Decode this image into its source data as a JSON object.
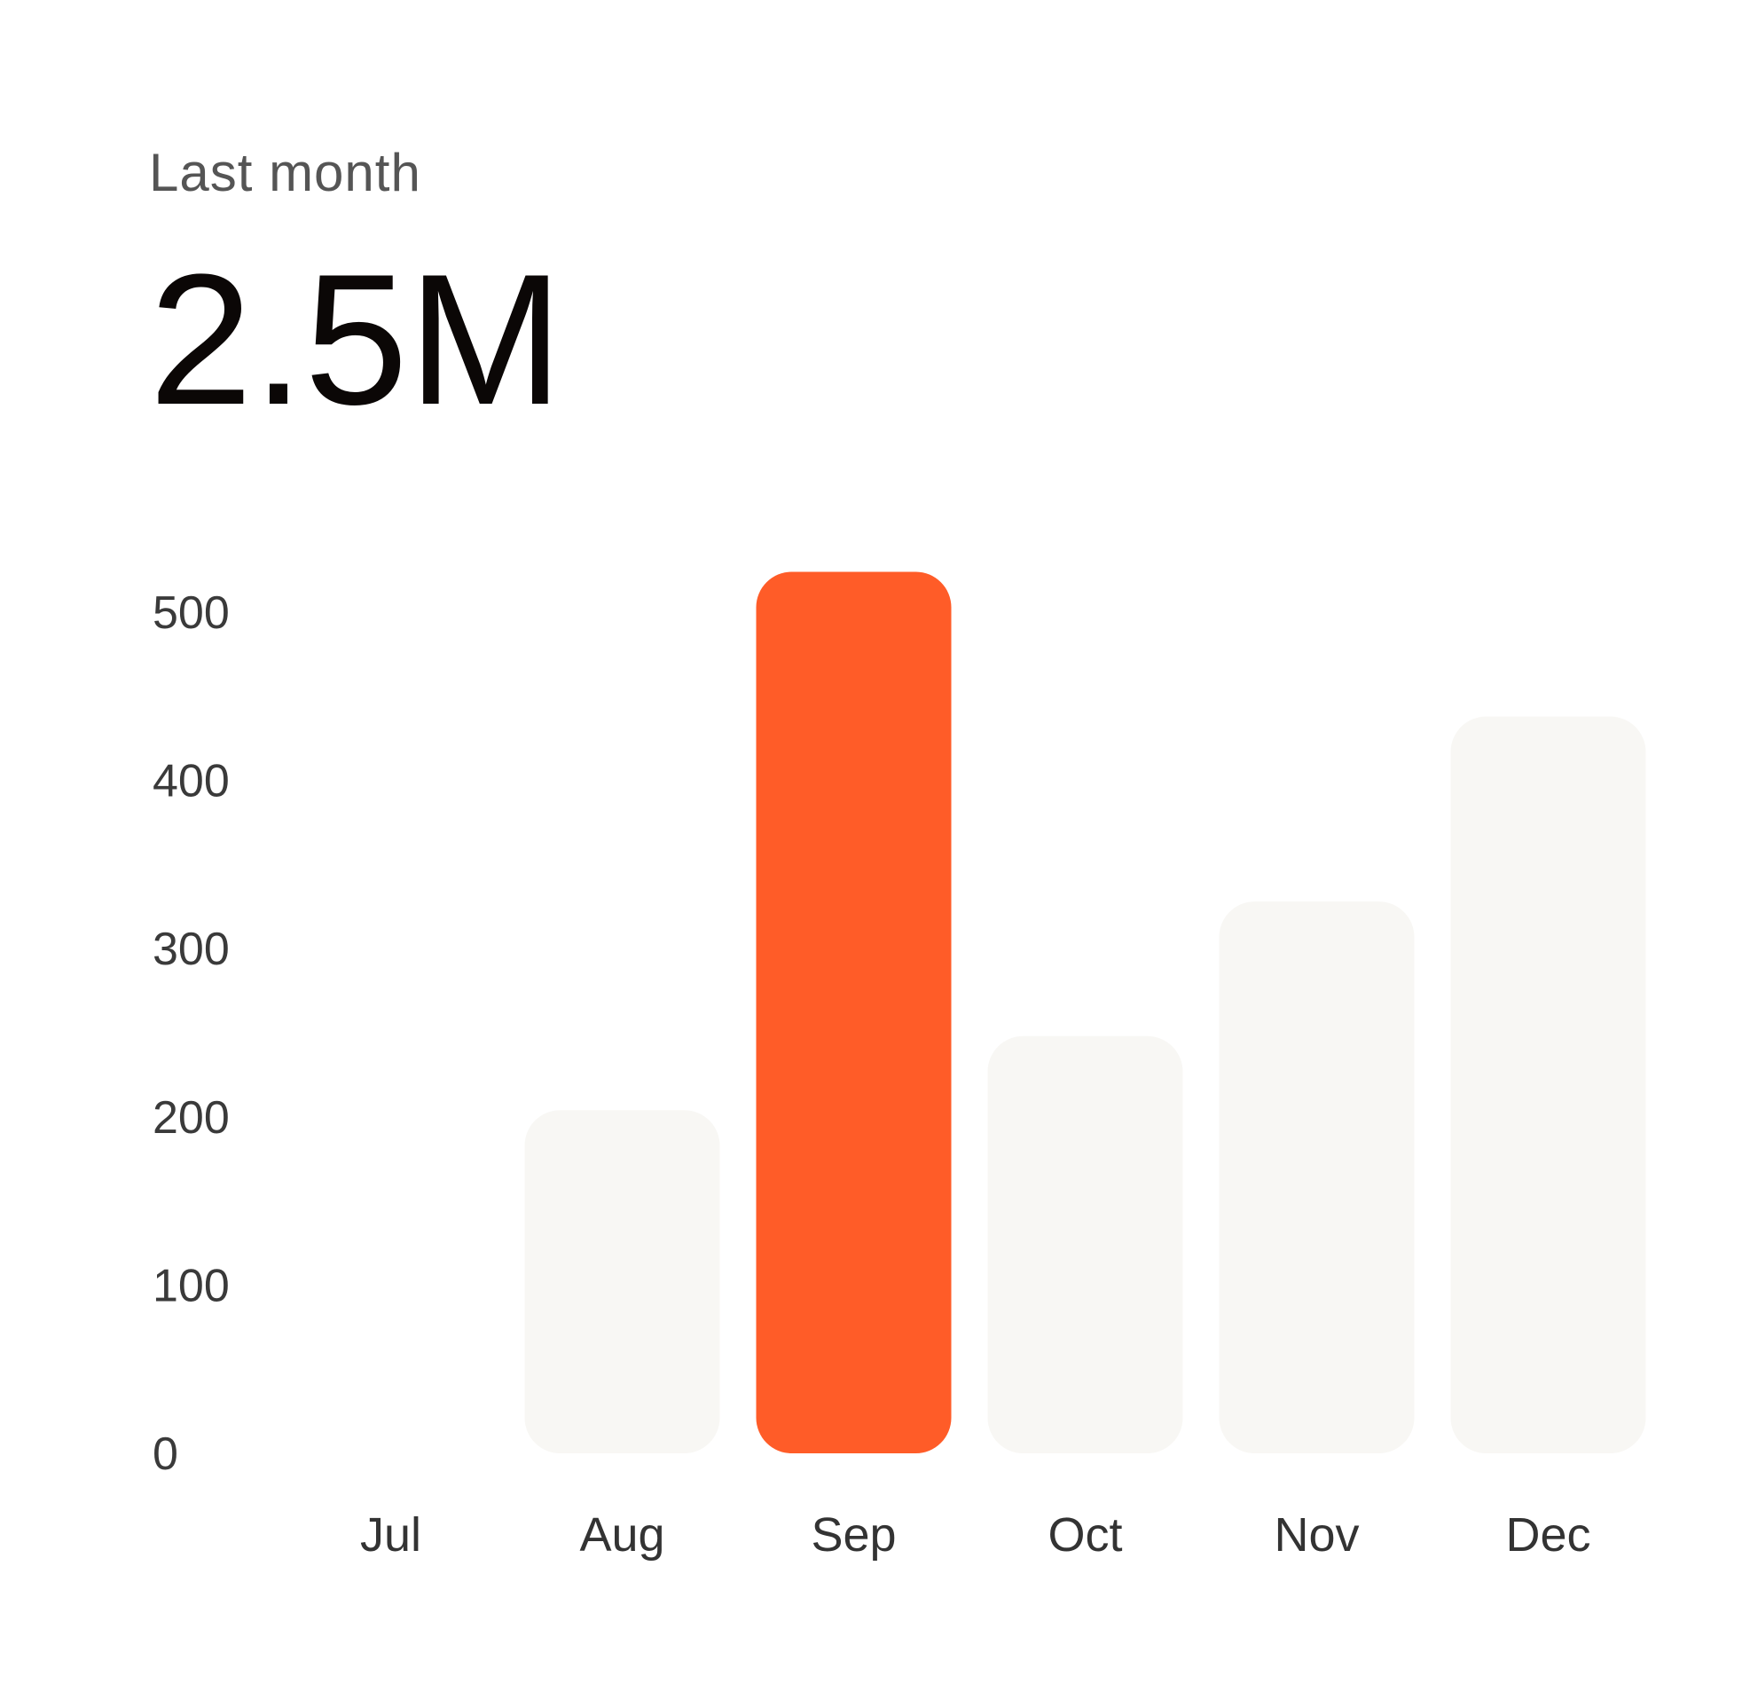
{
  "header": {
    "subtitle": "Last month",
    "value": "2.5M"
  },
  "colors": {
    "highlight": "#FF5C28",
    "muted_bar": "#F8F7F4",
    "text": "#0B0706",
    "axis_text": "#3A3A3A"
  },
  "chart_data": {
    "type": "bar",
    "categories": [
      "Jul",
      "Aug",
      "Sep",
      "Oct",
      "Nov",
      "Dec"
    ],
    "values": [
      0,
      204,
      524,
      248,
      328,
      438
    ],
    "highlighted_category": "Sep",
    "yticks": [
      "0",
      "100",
      "200",
      "300",
      "400",
      "500"
    ],
    "ylim": [
      0,
      500
    ],
    "grid": false,
    "legend": "none",
    "xlabel": "",
    "ylabel": ""
  }
}
